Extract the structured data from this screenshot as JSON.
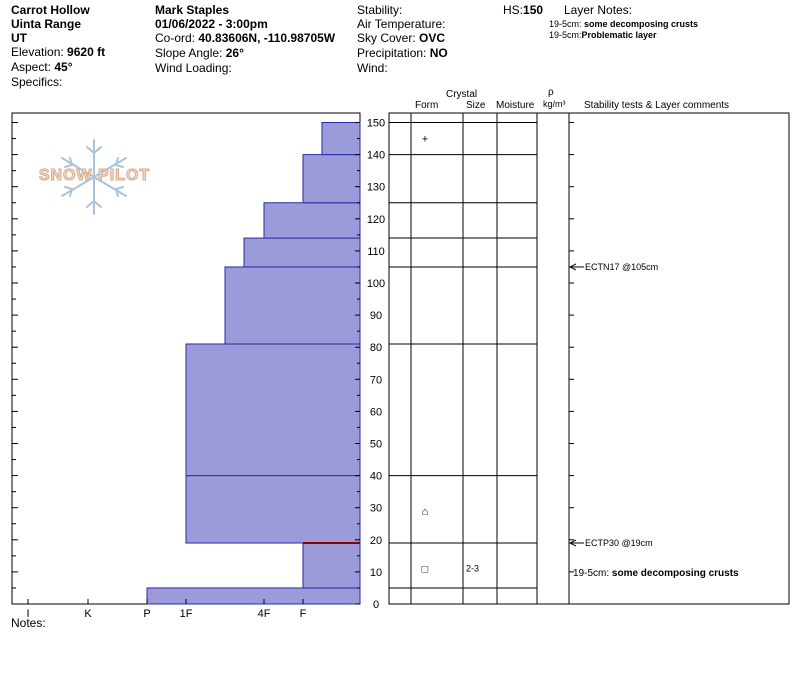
{
  "header": {
    "location": "Carrot Hollow",
    "range": "Uinta Range",
    "state": "UT",
    "elevation_label": "Elevation: ",
    "elevation": "9620 ft",
    "aspect_label": "Aspect: ",
    "aspect": "45°",
    "specifics_label": "Specifics:",
    "observer": "Mark Staples",
    "datetime": "01/06/2022 - 3:00pm",
    "coord_label": "Co-ord: ",
    "coord": "40.83606N, -110.98705W",
    "slope_label": "Slope Angle: ",
    "slope": "26°",
    "wind_loading_label": "Wind Loading:",
    "stability_label": "Stability:",
    "air_temp_label": "Air Temperature:",
    "sky_label": "Sky Cover: ",
    "sky": "OVC",
    "precip_label": "Precipitation: ",
    "precip": "NO",
    "wind_label": "Wind:",
    "hs_label": "HS:",
    "hs": "150",
    "layer_notes_label": "Layer Notes:",
    "layer_notes": [
      {
        "range": "19-5cm: ",
        "text": "some decomposing crusts"
      },
      {
        "range": "19-5cm:",
        "text": "Problematic layer"
      }
    ]
  },
  "logo": {
    "text": "SNOW PILOT"
  },
  "columns": {
    "crystal": "Crystal",
    "form": "Form",
    "size": "Size",
    "moisture": "Moisture",
    "rho": "ρ",
    "density_unit": "kg/m³",
    "comments": "Stability tests & Layer comments"
  },
  "notes_label": "Notes:",
  "colors": {
    "fill": "#9b9bd9",
    "stroke": "#2a2aa6",
    "crust": "#8b0000"
  },
  "chart_data": {
    "type": "bar",
    "title": "",
    "ylabel": "",
    "ylim": [
      0,
      155
    ],
    "hardness_ticks": [
      "I",
      "K",
      "P",
      "1F",
      "4F",
      "F"
    ],
    "height_ticks": [
      0,
      10,
      20,
      30,
      40,
      50,
      60,
      70,
      80,
      90,
      100,
      110,
      120,
      130,
      140,
      150
    ],
    "layers": [
      {
        "bottom": 0,
        "top": 5,
        "hardness": "P"
      },
      {
        "bottom": 5,
        "top": 19,
        "hardness": "F"
      },
      {
        "bottom": 19,
        "top": 40,
        "hardness": "1F"
      },
      {
        "bottom": 40,
        "top": 81,
        "hardness": "1F"
      },
      {
        "bottom": 81,
        "top": 105,
        "hardness": "1F+"
      },
      {
        "bottom": 105,
        "top": 114,
        "hardness": "4F-"
      },
      {
        "bottom": 114,
        "top": 125,
        "hardness": "4F"
      },
      {
        "bottom": 125,
        "top": 140,
        "hardness": "F"
      },
      {
        "bottom": 140,
        "top": 150,
        "hardness": "F+"
      }
    ],
    "crust_line": {
      "height": 19
    },
    "grain_forms": [
      {
        "height": 145,
        "symbol": "+"
      },
      {
        "height": 29,
        "symbol": "⌂"
      },
      {
        "height": 11,
        "symbol": "□",
        "size": "2-3"
      }
    ],
    "stability_tests": [
      {
        "height": 105,
        "label": "ECTN17 @105cm"
      },
      {
        "height": 19,
        "label": "ECTP30 @19cm"
      }
    ],
    "layer_comments": [
      {
        "height": 10,
        "range": "19-5cm: ",
        "text": "some decomposing crusts"
      }
    ]
  }
}
